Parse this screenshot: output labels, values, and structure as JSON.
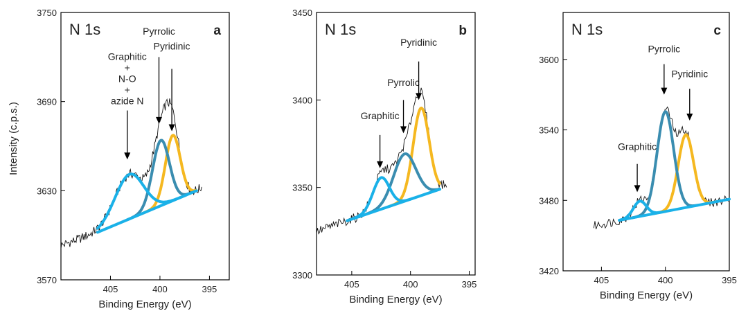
{
  "figure": {
    "ylabel": "Intensity (c.p.s.)",
    "colors": {
      "fit_a": "#3a8db0",
      "fit_b": "#f5b820",
      "fit_c": "#1ab1e8",
      "raw": "#111111",
      "frame": "#000000"
    }
  },
  "chart_data": [
    {
      "type": "line",
      "title": "N 1s",
      "panel_label": "a",
      "xlabel": "Binding Energy (eV)",
      "ylabel": "Intensity (c.p.s.)",
      "xlim": [
        410,
        393
      ],
      "ylim": [
        3570,
        3750
      ],
      "xticks": [
        "405",
        "400",
        "395"
      ],
      "yticks": [
        "3570",
        "3630",
        "3690",
        "3750"
      ],
      "baseline": {
        "x": [
          406.3,
          396.3
        ],
        "y": [
          3602,
          3630
        ]
      },
      "series": [
        {
          "color": "#1ab1e8",
          "center": 403.1,
          "height": 30,
          "sigma": 1.45
        },
        {
          "color": "#3a8db0",
          "center": 399.9,
          "height": 44,
          "sigma": 0.85
        },
        {
          "color": "#f5b820",
          "center": 398.7,
          "height": 44,
          "sigma": 0.75
        }
      ],
      "raw_range": [
        410,
        395.7
      ],
      "annotations": [
        {
          "text_lines": [
            "Graphitic",
            "+",
            "N-O",
            "+",
            "azide N"
          ],
          "x": 403.3,
          "text_y": 3718,
          "arrow_from": 3684,
          "arrow_to": 3651
        },
        {
          "text_lines": [
            "Pyrrolic"
          ],
          "x": 400.1,
          "text_y": 3735,
          "arrow_from": 3720,
          "arrow_to": 3675
        },
        {
          "text_lines": [
            "Pyridinic"
          ],
          "x": 398.8,
          "text_y": 3725,
          "arrow_from": 3712,
          "arrow_to": 3670
        }
      ]
    },
    {
      "type": "line",
      "title": "N 1s",
      "panel_label": "b",
      "xlabel": "Binding Energy (eV)",
      "ylabel": "",
      "xlim": [
        408,
        394.5
      ],
      "ylim": [
        3300,
        3450
      ],
      "xticks": [
        "405",
        "400",
        "395"
      ],
      "yticks": [
        "3300",
        "3350",
        "3400",
        "3450"
      ],
      "baseline": {
        "x": [
          405.4,
          397.5
        ],
        "y": [
          3331,
          3349
        ]
      },
      "series": [
        {
          "color": "#1ab1e8",
          "center": 402.5,
          "height": 18,
          "sigma": 0.7
        },
        {
          "color": "#3a8db0",
          "center": 400.5,
          "height": 27,
          "sigma": 0.95
        },
        {
          "color": "#f5b820",
          "center": 399.1,
          "height": 50,
          "sigma": 0.68
        }
      ],
      "raw_range": [
        408,
        396.9
      ],
      "annotations": [
        {
          "text_lines": [
            "Graphitic"
          ],
          "x": 402.6,
          "text_y": 3389,
          "arrow_from": 3380,
          "arrow_to": 3361
        },
        {
          "text_lines": [
            "Pyrrolic"
          ],
          "x": 400.6,
          "text_y": 3408,
          "arrow_from": 3400,
          "arrow_to": 3381
        },
        {
          "text_lines": [
            "Pyridinic"
          ],
          "x": 399.3,
          "text_y": 3431,
          "arrow_from": 3422,
          "arrow_to": 3400
        }
      ]
    },
    {
      "type": "line",
      "title": "N 1s",
      "panel_label": "c",
      "xlabel": "Binding Energy (eV)",
      "ylabel": "",
      "xlim": [
        408,
        395
      ],
      "ylim": [
        3420,
        3640
      ],
      "xticks": [
        "405",
        "400",
        "395"
      ],
      "yticks": [
        "3420",
        "3480",
        "3540",
        "3600"
      ],
      "baseline": {
        "x": [
          403.6,
          395
        ],
        "y": [
          3463,
          3481
        ]
      },
      "series": [
        {
          "color": "#1ab1e8",
          "center": 402.0,
          "height": 13,
          "sigma": 0.5
        },
        {
          "color": "#3a8db0",
          "center": 400.0,
          "height": 85,
          "sigma": 0.65
        },
        {
          "color": "#f5b820",
          "center": 398.4,
          "height": 62,
          "sigma": 0.6
        }
      ],
      "raw_range": [
        405.6,
        395
      ],
      "annotations": [
        {
          "text_lines": [
            "Graphitic"
          ],
          "x": 402.2,
          "text_y": 3523,
          "arrow_from": 3511,
          "arrow_to": 3487
        },
        {
          "text_lines": [
            "Pyrrolic"
          ],
          "x": 400.1,
          "text_y": 3606,
          "arrow_from": 3596,
          "arrow_to": 3570
        },
        {
          "text_lines": [
            "Pyridinic"
          ],
          "x": 398.1,
          "text_y": 3585,
          "arrow_from": 3575,
          "arrow_to": 3548
        }
      ]
    }
  ]
}
